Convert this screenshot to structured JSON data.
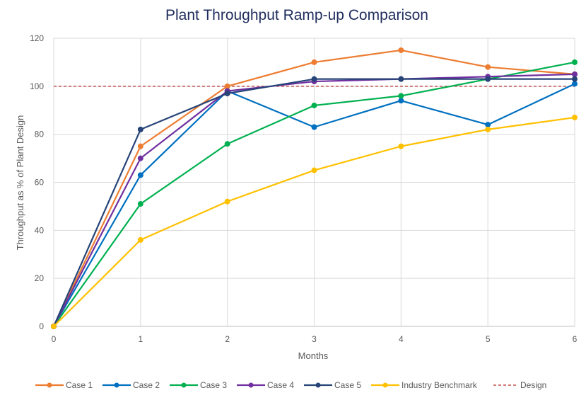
{
  "chart_data": {
    "type": "line",
    "title": "Plant Throughput Ramp-up Comparison",
    "xlabel": "Months",
    "ylabel": "Throughput as % of Plant Design",
    "x": [
      0,
      1,
      2,
      3,
      4,
      5,
      6
    ],
    "xlim": [
      0,
      6
    ],
    "ylim": [
      0,
      120
    ],
    "yticks": [
      0,
      20,
      40,
      60,
      80,
      100,
      120
    ],
    "xticks": [
      0,
      1,
      2,
      3,
      4,
      5,
      6
    ],
    "grid": true,
    "legend_position": "bottom",
    "series": [
      {
        "name": "Case 1",
        "color": "#ed7d31",
        "values": [
          0,
          75,
          100,
          110,
          115,
          108,
          105
        ]
      },
      {
        "name": "Case 2",
        "color": "#0070c0",
        "values": [
          0,
          63,
          98,
          83,
          94,
          84,
          101
        ]
      },
      {
        "name": "Case 3",
        "color": "#00b050",
        "values": [
          0,
          51,
          76,
          92,
          96,
          103,
          110
        ]
      },
      {
        "name": "Case 4",
        "color": "#7030a0",
        "values": [
          0,
          70,
          98,
          102,
          103,
          104,
          105
        ]
      },
      {
        "name": "Case 5",
        "color": "#264478",
        "values": [
          0,
          82,
          97,
          103,
          103,
          103,
          103
        ]
      },
      {
        "name": "Industry Benchmark",
        "color": "#ffc000",
        "values": [
          0,
          36,
          52,
          65,
          75,
          82,
          87
        ]
      }
    ],
    "reference_line": {
      "name": "Design",
      "color": "#c0504d",
      "value": 100,
      "style": "dashed"
    }
  }
}
